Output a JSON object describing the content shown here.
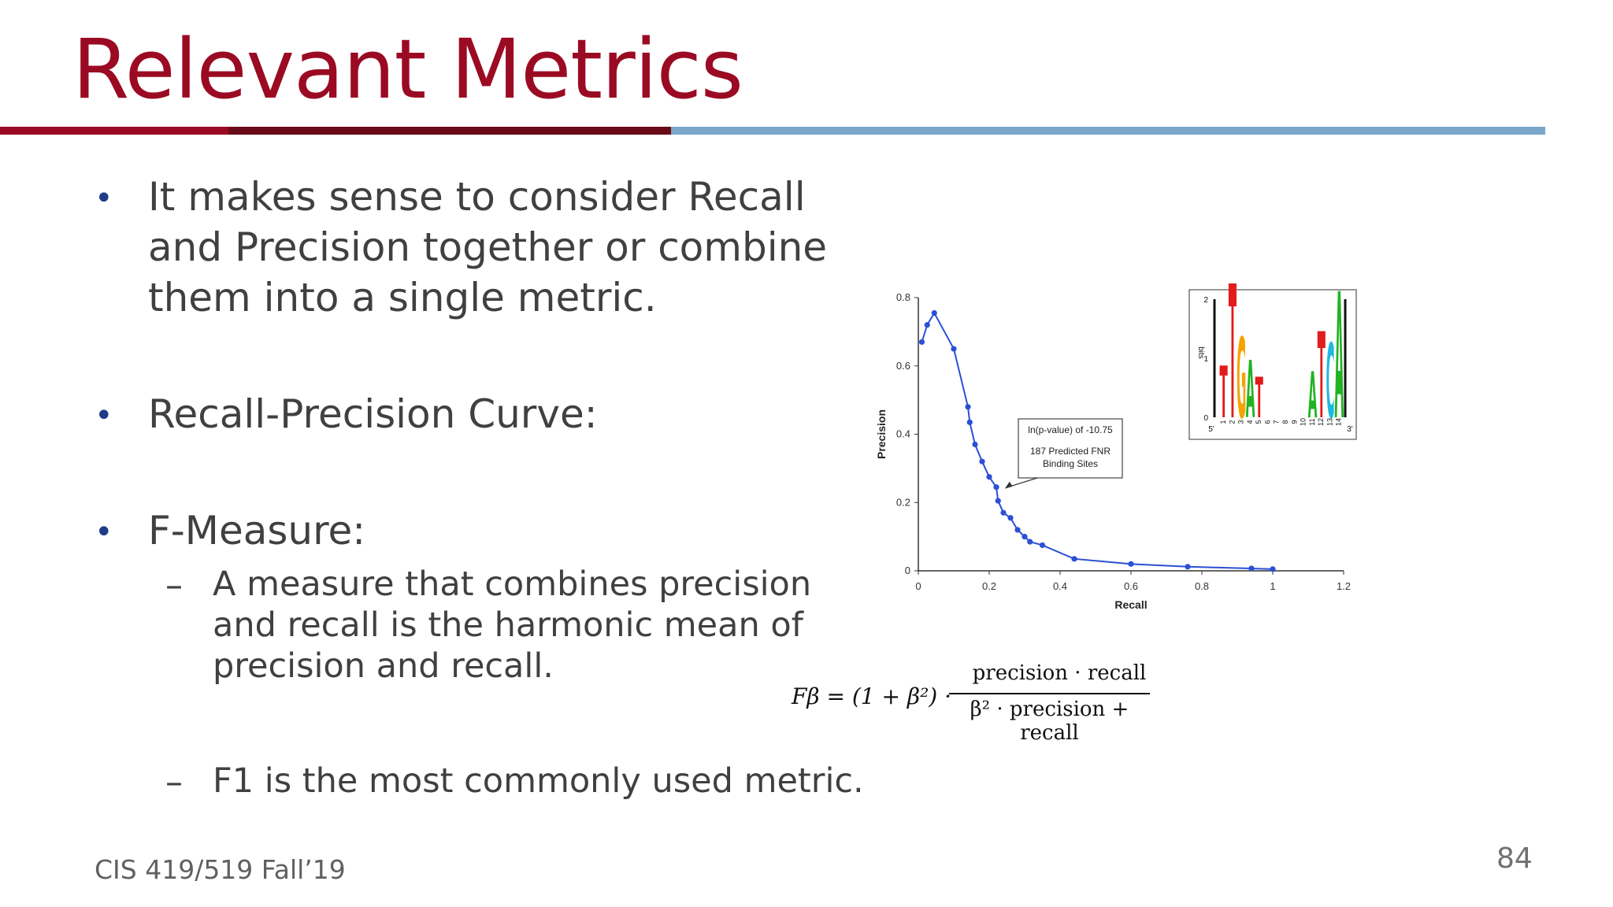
{
  "slide": {
    "title": "Relevant Metrics",
    "bullets": [
      {
        "marker": "•",
        "lines": [
          "It makes sense to consider Recall",
          "and Precision together or combine",
          "them into a single metric."
        ]
      },
      {
        "marker": "•",
        "lines": [
          "Recall-Precision Curve:"
        ]
      },
      {
        "marker": "•",
        "lines": [
          "F-Measure:"
        ],
        "subitems": [
          {
            "marker": "–",
            "lines": [
              "A measure that combines precision",
              "and recall is the harmonic mean of",
              "precision and recall."
            ]
          },
          {
            "marker": "–",
            "lines": [
              "F1 is the most commonly used metric."
            ]
          }
        ]
      }
    ],
    "footer": "CIS 419/519 Fall’19",
    "page_number": "84"
  },
  "formula": {
    "lhs": "Fβ = (1 + β²) ·",
    "numerator": "precision · recall",
    "denominator": "β² · precision + recall"
  },
  "chart_data": {
    "type": "line",
    "title": "",
    "xlabel": "Recall",
    "ylabel": "Precision",
    "xlim": [
      0,
      1.2
    ],
    "ylim": [
      0,
      0.8
    ],
    "xticks": [
      "0",
      "0.2",
      "0.4",
      "0.6",
      "0.8",
      "1",
      "1.2"
    ],
    "yticks": [
      "0",
      "0.2",
      "0.4",
      "0.6",
      "0.8"
    ],
    "grid": false,
    "series": [
      {
        "color": "#2b4fd6",
        "x": [
          0.01,
          0.025,
          0.045,
          0.1,
          0.14,
          0.145,
          0.16,
          0.18,
          0.2,
          0.22,
          0.225,
          0.24,
          0.26,
          0.28,
          0.3,
          0.315,
          0.35,
          0.44,
          0.6,
          0.76,
          0.94,
          1.0
        ],
        "y": [
          0.67,
          0.72,
          0.755,
          0.65,
          0.48,
          0.435,
          0.37,
          0.32,
          0.275,
          0.245,
          0.205,
          0.17,
          0.155,
          0.12,
          0.1,
          0.085,
          0.075,
          0.035,
          0.02,
          0.012,
          0.007,
          0.005
        ]
      }
    ],
    "annotation": {
      "lines": [
        "ln(p-value) of -10.75",
        "187 Predicted FNR",
        "Binding Sites"
      ],
      "target": [
        0.235,
        0.245
      ]
    },
    "inset_logo": {
      "ylabel": "bits",
      "yticks": [
        "0",
        "1",
        "2"
      ],
      "positions": [
        "1",
        "2",
        "3",
        "4",
        "5",
        "6",
        "7",
        "8",
        "9",
        "10",
        "11",
        "12",
        "13",
        "14"
      ],
      "end_labels": [
        "5'",
        "3'"
      ],
      "letters": [
        {
          "pos": 1,
          "char": "T",
          "color": "#e21b1b",
          "h": 0.9
        },
        {
          "pos": 2,
          "char": "T",
          "color": "#e21b1b",
          "h": 2.4
        },
        {
          "pos": 3,
          "char": "G",
          "color": "#f5a300",
          "h": 1.4
        },
        {
          "pos": 4,
          "char": "A",
          "color": "#22b322",
          "h": 1.0
        },
        {
          "pos": 5,
          "char": "T",
          "color": "#e21b1b",
          "h": 0.7
        },
        {
          "pos": 11,
          "char": "A",
          "color": "#22b322",
          "h": 0.8
        },
        {
          "pos": 12,
          "char": "T",
          "color": "#e21b1b",
          "h": 1.5
        },
        {
          "pos": 13,
          "char": "C",
          "color": "#20b8e0",
          "h": 1.3
        },
        {
          "pos": 14,
          "char": "A",
          "color": "#22b322",
          "h": 2.2
        }
      ]
    }
  }
}
